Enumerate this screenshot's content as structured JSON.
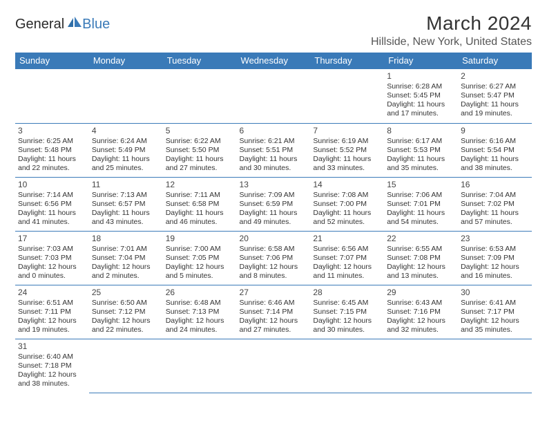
{
  "logo": {
    "part1": "General",
    "part2": "Blue"
  },
  "title": "March 2024",
  "location": "Hillside, New York, United States",
  "header_color": "#3a7ab8",
  "header_text_color": "#ffffff",
  "border_color": "#3a7ab8",
  "body_text_color": "#333333",
  "font_family": "Arial",
  "daynum_fontsize": 12,
  "cell_fontsize": 10.5,
  "title_fontsize": 28,
  "location_fontsize": 16,
  "weekday_fontsize": 13,
  "weekdays": [
    "Sunday",
    "Monday",
    "Tuesday",
    "Wednesday",
    "Thursday",
    "Friday",
    "Saturday"
  ],
  "grid": [
    [
      null,
      null,
      null,
      null,
      null,
      {
        "n": "1",
        "sunrise": "Sunrise: 6:28 AM",
        "sunset": "Sunset: 5:45 PM",
        "day1": "Daylight: 11 hours",
        "day2": "and 17 minutes."
      },
      {
        "n": "2",
        "sunrise": "Sunrise: 6:27 AM",
        "sunset": "Sunset: 5:47 PM",
        "day1": "Daylight: 11 hours",
        "day2": "and 19 minutes."
      }
    ],
    [
      {
        "n": "3",
        "sunrise": "Sunrise: 6:25 AM",
        "sunset": "Sunset: 5:48 PM",
        "day1": "Daylight: 11 hours",
        "day2": "and 22 minutes."
      },
      {
        "n": "4",
        "sunrise": "Sunrise: 6:24 AM",
        "sunset": "Sunset: 5:49 PM",
        "day1": "Daylight: 11 hours",
        "day2": "and 25 minutes."
      },
      {
        "n": "5",
        "sunrise": "Sunrise: 6:22 AM",
        "sunset": "Sunset: 5:50 PM",
        "day1": "Daylight: 11 hours",
        "day2": "and 27 minutes."
      },
      {
        "n": "6",
        "sunrise": "Sunrise: 6:21 AM",
        "sunset": "Sunset: 5:51 PM",
        "day1": "Daylight: 11 hours",
        "day2": "and 30 minutes."
      },
      {
        "n": "7",
        "sunrise": "Sunrise: 6:19 AM",
        "sunset": "Sunset: 5:52 PM",
        "day1": "Daylight: 11 hours",
        "day2": "and 33 minutes."
      },
      {
        "n": "8",
        "sunrise": "Sunrise: 6:17 AM",
        "sunset": "Sunset: 5:53 PM",
        "day1": "Daylight: 11 hours",
        "day2": "and 35 minutes."
      },
      {
        "n": "9",
        "sunrise": "Sunrise: 6:16 AM",
        "sunset": "Sunset: 5:54 PM",
        "day1": "Daylight: 11 hours",
        "day2": "and 38 minutes."
      }
    ],
    [
      {
        "n": "10",
        "sunrise": "Sunrise: 7:14 AM",
        "sunset": "Sunset: 6:56 PM",
        "day1": "Daylight: 11 hours",
        "day2": "and 41 minutes."
      },
      {
        "n": "11",
        "sunrise": "Sunrise: 7:13 AM",
        "sunset": "Sunset: 6:57 PM",
        "day1": "Daylight: 11 hours",
        "day2": "and 43 minutes."
      },
      {
        "n": "12",
        "sunrise": "Sunrise: 7:11 AM",
        "sunset": "Sunset: 6:58 PM",
        "day1": "Daylight: 11 hours",
        "day2": "and 46 minutes."
      },
      {
        "n": "13",
        "sunrise": "Sunrise: 7:09 AM",
        "sunset": "Sunset: 6:59 PM",
        "day1": "Daylight: 11 hours",
        "day2": "and 49 minutes."
      },
      {
        "n": "14",
        "sunrise": "Sunrise: 7:08 AM",
        "sunset": "Sunset: 7:00 PM",
        "day1": "Daylight: 11 hours",
        "day2": "and 52 minutes."
      },
      {
        "n": "15",
        "sunrise": "Sunrise: 7:06 AM",
        "sunset": "Sunset: 7:01 PM",
        "day1": "Daylight: 11 hours",
        "day2": "and 54 minutes."
      },
      {
        "n": "16",
        "sunrise": "Sunrise: 7:04 AM",
        "sunset": "Sunset: 7:02 PM",
        "day1": "Daylight: 11 hours",
        "day2": "and 57 minutes."
      }
    ],
    [
      {
        "n": "17",
        "sunrise": "Sunrise: 7:03 AM",
        "sunset": "Sunset: 7:03 PM",
        "day1": "Daylight: 12 hours",
        "day2": "and 0 minutes."
      },
      {
        "n": "18",
        "sunrise": "Sunrise: 7:01 AM",
        "sunset": "Sunset: 7:04 PM",
        "day1": "Daylight: 12 hours",
        "day2": "and 2 minutes."
      },
      {
        "n": "19",
        "sunrise": "Sunrise: 7:00 AM",
        "sunset": "Sunset: 7:05 PM",
        "day1": "Daylight: 12 hours",
        "day2": "and 5 minutes."
      },
      {
        "n": "20",
        "sunrise": "Sunrise: 6:58 AM",
        "sunset": "Sunset: 7:06 PM",
        "day1": "Daylight: 12 hours",
        "day2": "and 8 minutes."
      },
      {
        "n": "21",
        "sunrise": "Sunrise: 6:56 AM",
        "sunset": "Sunset: 7:07 PM",
        "day1": "Daylight: 12 hours",
        "day2": "and 11 minutes."
      },
      {
        "n": "22",
        "sunrise": "Sunrise: 6:55 AM",
        "sunset": "Sunset: 7:08 PM",
        "day1": "Daylight: 12 hours",
        "day2": "and 13 minutes."
      },
      {
        "n": "23",
        "sunrise": "Sunrise: 6:53 AM",
        "sunset": "Sunset: 7:09 PM",
        "day1": "Daylight: 12 hours",
        "day2": "and 16 minutes."
      }
    ],
    [
      {
        "n": "24",
        "sunrise": "Sunrise: 6:51 AM",
        "sunset": "Sunset: 7:11 PM",
        "day1": "Daylight: 12 hours",
        "day2": "and 19 minutes."
      },
      {
        "n": "25",
        "sunrise": "Sunrise: 6:50 AM",
        "sunset": "Sunset: 7:12 PM",
        "day1": "Daylight: 12 hours",
        "day2": "and 22 minutes."
      },
      {
        "n": "26",
        "sunrise": "Sunrise: 6:48 AM",
        "sunset": "Sunset: 7:13 PM",
        "day1": "Daylight: 12 hours",
        "day2": "and 24 minutes."
      },
      {
        "n": "27",
        "sunrise": "Sunrise: 6:46 AM",
        "sunset": "Sunset: 7:14 PM",
        "day1": "Daylight: 12 hours",
        "day2": "and 27 minutes."
      },
      {
        "n": "28",
        "sunrise": "Sunrise: 6:45 AM",
        "sunset": "Sunset: 7:15 PM",
        "day1": "Daylight: 12 hours",
        "day2": "and 30 minutes."
      },
      {
        "n": "29",
        "sunrise": "Sunrise: 6:43 AM",
        "sunset": "Sunset: 7:16 PM",
        "day1": "Daylight: 12 hours",
        "day2": "and 32 minutes."
      },
      {
        "n": "30",
        "sunrise": "Sunrise: 6:41 AM",
        "sunset": "Sunset: 7:17 PM",
        "day1": "Daylight: 12 hours",
        "day2": "and 35 minutes."
      }
    ],
    [
      {
        "n": "31",
        "sunrise": "Sunrise: 6:40 AM",
        "sunset": "Sunset: 7:18 PM",
        "day1": "Daylight: 12 hours",
        "day2": "and 38 minutes."
      },
      null,
      null,
      null,
      null,
      null,
      null
    ]
  ]
}
